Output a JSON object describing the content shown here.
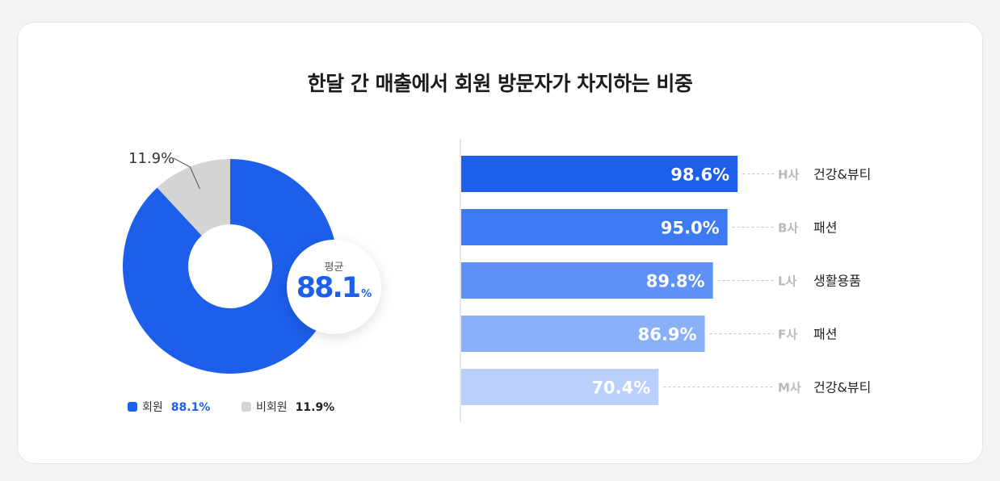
{
  "title": "한달 간 매출에서 회원 방문자가 차지하는 비중",
  "donut": {
    "callout_label": "11.9%",
    "average_label": "평균",
    "average_value": "88.1",
    "average_unit": "%",
    "legend": [
      {
        "label": "회원",
        "value": "88.1%",
        "color": "#1d5eea",
        "value_color": "#1d5eea"
      },
      {
        "label": "비회원",
        "value": "11.9%",
        "color": "#d4d4d4",
        "value_color": "#222222"
      }
    ]
  },
  "colors": {
    "member": "#1d5eea",
    "non_member": "#d4d4d4",
    "axis_line": "#cfcfcf",
    "leader_line": "#c8c8c8",
    "company_code": "#b9b9b9",
    "category_text": "#222222"
  },
  "chart_data": [
    {
      "type": "pie",
      "title": "",
      "slices": [
        {
          "label": "회원",
          "value": 88.1,
          "color": "#1d5eea"
        },
        {
          "label": "비회원",
          "value": 11.9,
          "color": "#d4d4d4"
        }
      ],
      "legend_position": "bottom"
    },
    {
      "type": "bar",
      "orientation": "horizontal",
      "title": "",
      "xlim": [
        0,
        100
      ],
      "grid": false,
      "categories": [
        {
          "code": "H사",
          "name": "건강&뷰티"
        },
        {
          "code": "B사",
          "name": "패션"
        },
        {
          "code": "L사",
          "name": "생활용품"
        },
        {
          "code": "F사",
          "name": "패션"
        },
        {
          "code": "M사",
          "name": "건강&뷰티"
        }
      ],
      "values": [
        98.6,
        95.0,
        89.8,
        86.9,
        70.4
      ],
      "value_labels": [
        "98.6%",
        "95.0%",
        "89.8%",
        "86.9%",
        "70.4%"
      ],
      "bar_colors": [
        "#1d5eea",
        "#3d7af5",
        "#5e92f7",
        "#8bb0fa",
        "#b9d0fc"
      ]
    }
  ]
}
